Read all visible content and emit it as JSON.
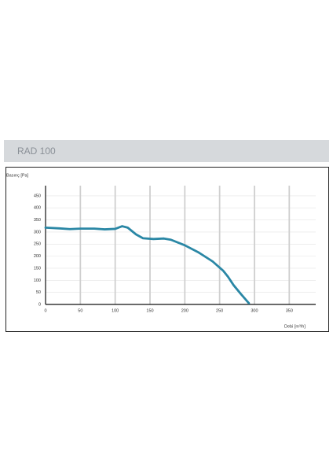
{
  "chart_data": {
    "type": "line",
    "title": "RAD 100",
    "y_label": "Basınç [Pa]",
    "x_label": "Debi [m³/h]",
    "x": [
      0,
      20,
      35,
      50,
      70,
      85,
      100,
      110,
      118,
      130,
      140,
      155,
      170,
      180,
      200,
      220,
      240,
      255,
      262,
      270,
      280,
      292
    ],
    "series": [
      {
        "name": "RAD 100",
        "color": "#2a87a5",
        "values": [
          318,
          315,
          312,
          314,
          314,
          311,
          313,
          324,
          318,
          290,
          274,
          271,
          273,
          268,
          245,
          215,
          178,
          140,
          115,
          80,
          45,
          5
        ]
      }
    ],
    "xlim": [
      0,
      388
    ],
    "ylim": [
      0,
      492
    ],
    "xticks": [
      0,
      50,
      100,
      150,
      200,
      250,
      300,
      350
    ],
    "yticks": [
      0,
      50,
      100,
      150,
      200,
      250,
      300,
      350,
      400,
      450
    ],
    "grid": true
  }
}
